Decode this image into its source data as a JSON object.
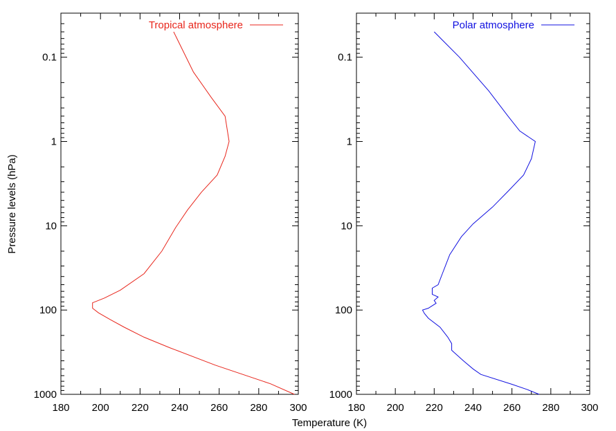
{
  "figure": {
    "shared_xlabel": "Temperature (K)",
    "shared_ylabel": "Pressure levels (hPa)"
  },
  "chart_data": [
    {
      "type": "line",
      "title": "",
      "xlabel": "Temperature (K)",
      "ylabel": "Pressure levels (hPa)",
      "xlim": [
        180,
        300
      ],
      "ylim": [
        1000,
        0.03
      ],
      "yscale": "log",
      "y_inverted": true,
      "x_ticks": [
        "180",
        "200",
        "220",
        "240",
        "260",
        "280",
        "300"
      ],
      "y_ticks": [
        "0.1",
        "1",
        "10",
        "100",
        "1000"
      ],
      "grid": false,
      "legend_position": "top-right",
      "series": [
        {
          "name": "Tropical atmosphere",
          "color": "#e8261c",
          "points": [
            {
              "x": 237,
              "y": 0.05
            },
            {
              "x": 247,
              "y": 0.15
            },
            {
              "x": 256,
              "y": 0.3
            },
            {
              "x": 263,
              "y": 0.5
            },
            {
              "x": 265,
              "y": 1.0
            },
            {
              "x": 263,
              "y": 1.5
            },
            {
              "x": 259,
              "y": 2.5
            },
            {
              "x": 251,
              "y": 4.0
            },
            {
              "x": 244,
              "y": 6.5
            },
            {
              "x": 238,
              "y": 10.5
            },
            {
              "x": 231,
              "y": 20
            },
            {
              "x": 222,
              "y": 37
            },
            {
              "x": 210,
              "y": 58
            },
            {
              "x": 202,
              "y": 72
            },
            {
              "x": 196,
              "y": 82
            },
            {
              "x": 196,
              "y": 95
            },
            {
              "x": 199,
              "y": 108
            },
            {
              "x": 205,
              "y": 130
            },
            {
              "x": 212,
              "y": 160
            },
            {
              "x": 222,
              "y": 210
            },
            {
              "x": 235,
              "y": 280
            },
            {
              "x": 258,
              "y": 450
            },
            {
              "x": 286,
              "y": 750
            },
            {
              "x": 298,
              "y": 1000
            }
          ]
        },
        {
          "name": "Polar atmosphere",
          "color": "#1010e0",
          "points": [
            {
              "x": 220,
              "y": 0.05
            },
            {
              "x": 233,
              "y": 0.1
            },
            {
              "x": 248,
              "y": 0.25
            },
            {
              "x": 258,
              "y": 0.5
            },
            {
              "x": 264,
              "y": 0.75
            },
            {
              "x": 272,
              "y": 1.0
            },
            {
              "x": 270,
              "y": 1.6
            },
            {
              "x": 266,
              "y": 2.5
            },
            {
              "x": 258,
              "y": 3.9
            },
            {
              "x": 250,
              "y": 6.0
            },
            {
              "x": 240,
              "y": 9.5
            },
            {
              "x": 234,
              "y": 13.5
            },
            {
              "x": 228,
              "y": 22
            },
            {
              "x": 224,
              "y": 38
            },
            {
              "x": 222,
              "y": 50
            },
            {
              "x": 219,
              "y": 55
            },
            {
              "x": 219,
              "y": 65
            },
            {
              "x": 222,
              "y": 70
            },
            {
              "x": 220,
              "y": 77
            },
            {
              "x": 221,
              "y": 83
            },
            {
              "x": 217,
              "y": 95
            },
            {
              "x": 214,
              "y": 100
            },
            {
              "x": 215,
              "y": 110
            },
            {
              "x": 217,
              "y": 125
            },
            {
              "x": 223,
              "y": 160
            },
            {
              "x": 227,
              "y": 210
            },
            {
              "x": 229,
              "y": 250
            },
            {
              "x": 229,
              "y": 300
            },
            {
              "x": 235,
              "y": 400
            },
            {
              "x": 240,
              "y": 500
            },
            {
              "x": 244,
              "y": 580
            },
            {
              "x": 260,
              "y": 760
            },
            {
              "x": 268,
              "y": 880
            },
            {
              "x": 274,
              "y": 1000
            }
          ]
        }
      ]
    }
  ]
}
